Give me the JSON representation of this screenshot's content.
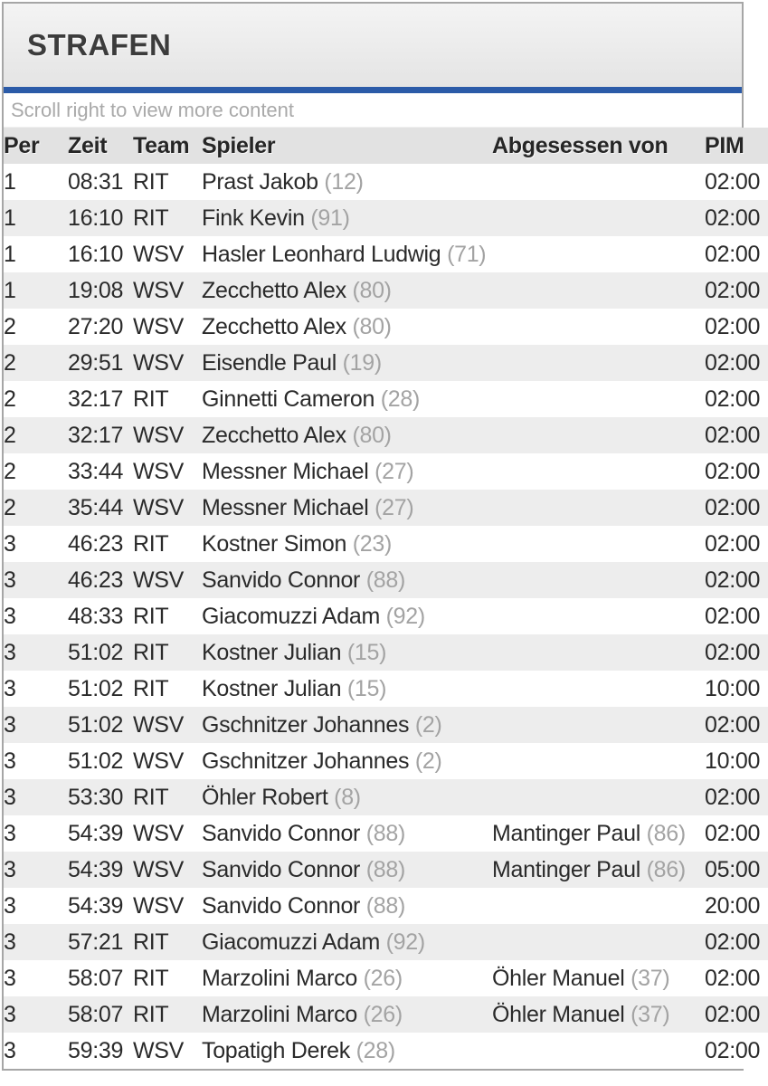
{
  "panel": {
    "title": "STRAFEN",
    "scroll_hint": "Scroll right to view more content",
    "accent_color": "#2b5ba8"
  },
  "table": {
    "columns": [
      {
        "key": "per",
        "label": "Per"
      },
      {
        "key": "zeit",
        "label": "Zeit"
      },
      {
        "key": "team",
        "label": "Team"
      },
      {
        "key": "spieler",
        "label": "Spieler"
      },
      {
        "key": "abgesessen_von",
        "label": "Abgesessen von"
      },
      {
        "key": "pim",
        "label": "PIM"
      }
    ],
    "rows": [
      {
        "per": "1",
        "zeit": "08:31",
        "team": "RIT",
        "spieler": "Prast Jakob",
        "spieler_nr": "(12)",
        "abgesessen_von": "",
        "abgesessen_von_nr": "",
        "pim": "02:00"
      },
      {
        "per": "1",
        "zeit": "16:10",
        "team": "RIT",
        "spieler": "Fink Kevin",
        "spieler_nr": "(91)",
        "abgesessen_von": "",
        "abgesessen_von_nr": "",
        "pim": "02:00"
      },
      {
        "per": "1",
        "zeit": "16:10",
        "team": "WSV",
        "spieler": "Hasler Leonhard Ludwig",
        "spieler_nr": "(71)",
        "abgesessen_von": "",
        "abgesessen_von_nr": "",
        "pim": "02:00"
      },
      {
        "per": "1",
        "zeit": "19:08",
        "team": "WSV",
        "spieler": "Zecchetto Alex",
        "spieler_nr": "(80)",
        "abgesessen_von": "",
        "abgesessen_von_nr": "",
        "pim": "02:00"
      },
      {
        "per": "2",
        "zeit": "27:20",
        "team": "WSV",
        "spieler": "Zecchetto Alex",
        "spieler_nr": "(80)",
        "abgesessen_von": "",
        "abgesessen_von_nr": "",
        "pim": "02:00"
      },
      {
        "per": "2",
        "zeit": "29:51",
        "team": "WSV",
        "spieler": "Eisendle Paul",
        "spieler_nr": "(19)",
        "abgesessen_von": "",
        "abgesessen_von_nr": "",
        "pim": "02:00"
      },
      {
        "per": "2",
        "zeit": "32:17",
        "team": "RIT",
        "spieler": "Ginnetti Cameron",
        "spieler_nr": "(28)",
        "abgesessen_von": "",
        "abgesessen_von_nr": "",
        "pim": "02:00"
      },
      {
        "per": "2",
        "zeit": "32:17",
        "team": "WSV",
        "spieler": "Zecchetto Alex",
        "spieler_nr": "(80)",
        "abgesessen_von": "",
        "abgesessen_von_nr": "",
        "pim": "02:00"
      },
      {
        "per": "2",
        "zeit": "33:44",
        "team": "WSV",
        "spieler": "Messner Michael",
        "spieler_nr": "(27)",
        "abgesessen_von": "",
        "abgesessen_von_nr": "",
        "pim": "02:00"
      },
      {
        "per": "2",
        "zeit": "35:44",
        "team": "WSV",
        "spieler": "Messner Michael",
        "spieler_nr": "(27)",
        "abgesessen_von": "",
        "abgesessen_von_nr": "",
        "pim": "02:00"
      },
      {
        "per": "3",
        "zeit": "46:23",
        "team": "RIT",
        "spieler": "Kostner Simon",
        "spieler_nr": "(23)",
        "abgesessen_von": "",
        "abgesessen_von_nr": "",
        "pim": "02:00"
      },
      {
        "per": "3",
        "zeit": "46:23",
        "team": "WSV",
        "spieler": "Sanvido Connor",
        "spieler_nr": "(88)",
        "abgesessen_von": "",
        "abgesessen_von_nr": "",
        "pim": "02:00"
      },
      {
        "per": "3",
        "zeit": "48:33",
        "team": "RIT",
        "spieler": "Giacomuzzi Adam",
        "spieler_nr": "(92)",
        "abgesessen_von": "",
        "abgesessen_von_nr": "",
        "pim": "02:00"
      },
      {
        "per": "3",
        "zeit": "51:02",
        "team": "RIT",
        "spieler": "Kostner Julian",
        "spieler_nr": "(15)",
        "abgesessen_von": "",
        "abgesessen_von_nr": "",
        "pim": "02:00"
      },
      {
        "per": "3",
        "zeit": "51:02",
        "team": "RIT",
        "spieler": "Kostner Julian",
        "spieler_nr": "(15)",
        "abgesessen_von": "",
        "abgesessen_von_nr": "",
        "pim": "10:00"
      },
      {
        "per": "3",
        "zeit": "51:02",
        "team": "WSV",
        "spieler": "Gschnitzer Johannes",
        "spieler_nr": "(2)",
        "abgesessen_von": "",
        "abgesessen_von_nr": "",
        "pim": "02:00"
      },
      {
        "per": "3",
        "zeit": "51:02",
        "team": "WSV",
        "spieler": "Gschnitzer Johannes",
        "spieler_nr": "(2)",
        "abgesessen_von": "",
        "abgesessen_von_nr": "",
        "pim": "10:00"
      },
      {
        "per": "3",
        "zeit": "53:30",
        "team": "RIT",
        "spieler": "Öhler Robert",
        "spieler_nr": "(8)",
        "abgesessen_von": "",
        "abgesessen_von_nr": "",
        "pim": "02:00"
      },
      {
        "per": "3",
        "zeit": "54:39",
        "team": "WSV",
        "spieler": "Sanvido Connor",
        "spieler_nr": "(88)",
        "abgesessen_von": "Mantinger Paul",
        "abgesessen_von_nr": "(86)",
        "pim": "02:00"
      },
      {
        "per": "3",
        "zeit": "54:39",
        "team": "WSV",
        "spieler": "Sanvido Connor",
        "spieler_nr": "(88)",
        "abgesessen_von": "Mantinger Paul",
        "abgesessen_von_nr": "(86)",
        "pim": "05:00"
      },
      {
        "per": "3",
        "zeit": "54:39",
        "team": "WSV",
        "spieler": "Sanvido Connor",
        "spieler_nr": "(88)",
        "abgesessen_von": "",
        "abgesessen_von_nr": "",
        "pim": "20:00"
      },
      {
        "per": "3",
        "zeit": "57:21",
        "team": "RIT",
        "spieler": "Giacomuzzi Adam",
        "spieler_nr": "(92)",
        "abgesessen_von": "",
        "abgesessen_von_nr": "",
        "pim": "02:00"
      },
      {
        "per": "3",
        "zeit": "58:07",
        "team": "RIT",
        "spieler": "Marzolini Marco",
        "spieler_nr": "(26)",
        "abgesessen_von": "Öhler Manuel",
        "abgesessen_von_nr": "(37)",
        "pim": "02:00"
      },
      {
        "per": "3",
        "zeit": "58:07",
        "team": "RIT",
        "spieler": "Marzolini Marco",
        "spieler_nr": "(26)",
        "abgesessen_von": "Öhler Manuel",
        "abgesessen_von_nr": "(37)",
        "pim": "02:00"
      },
      {
        "per": "3",
        "zeit": "59:39",
        "team": "WSV",
        "spieler": "Topatigh Derek",
        "spieler_nr": "(28)",
        "abgesessen_von": "",
        "abgesessen_von_nr": "",
        "pim": "02:00"
      }
    ]
  }
}
